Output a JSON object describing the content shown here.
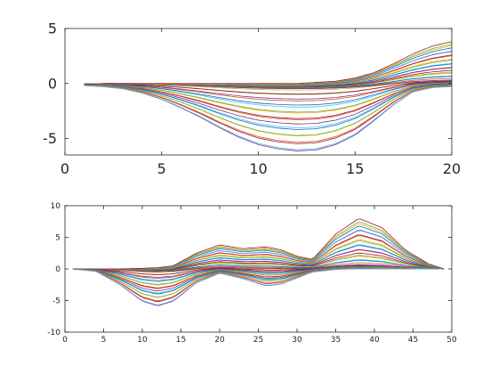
{
  "figure": {
    "background": "#ffffff",
    "axis_color": "#262626"
  },
  "chart_data": [
    {
      "type": "line",
      "title": "",
      "xlabel": "",
      "ylabel": "",
      "xlim": [
        0,
        20
      ],
      "ylim": [
        -6.5,
        5
      ],
      "xticks": [
        0,
        5,
        10,
        15,
        20
      ],
      "yticks": [
        -5,
        0,
        5
      ],
      "grid": false,
      "box": true,
      "line_count": 42,
      "x_range_of_lines": [
        1,
        20
      ],
      "envelope": {
        "x": [
          1,
          2,
          3,
          4,
          5,
          6,
          7,
          8,
          9,
          10,
          11,
          12,
          13,
          14,
          15,
          16,
          17,
          18,
          19,
          20
        ],
        "min": [
          -0.2,
          -0.3,
          -0.5,
          -0.9,
          -1.5,
          -2.3,
          -3.2,
          -4.2,
          -5.1,
          -5.8,
          -6.2,
          -6.4,
          -6.3,
          -5.8,
          -4.9,
          -3.5,
          -2.0,
          -0.8,
          -0.4,
          -0.3
        ],
        "max": [
          -0.1,
          0.0,
          0.0,
          0.0,
          0.0,
          0.0,
          0.0,
          0.0,
          0.0,
          0.0,
          0.0,
          0.0,
          0.1,
          0.2,
          0.5,
          1.0,
          1.8,
          2.7,
          3.4,
          3.8
        ]
      },
      "series_colors": [
        "#0072bd",
        "#d95319",
        "#edb120",
        "#7e2f8e",
        "#77ac30",
        "#4dbeee",
        "#a2142f"
      ]
    },
    {
      "type": "line",
      "title": "",
      "xlabel": "",
      "ylabel": "",
      "xlim": [
        0,
        50
      ],
      "ylim": [
        -10,
        10
      ],
      "xticks": [
        0,
        5,
        10,
        15,
        20,
        25,
        30,
        35,
        40,
        45,
        50
      ],
      "yticks": [
        -10,
        -5,
        0,
        5,
        10
      ],
      "grid": false,
      "box": true,
      "line_count": 42,
      "x_range_of_lines": [
        1,
        49
      ],
      "envelope": {
        "x": [
          1,
          4,
          7,
          10,
          12,
          14,
          17,
          20,
          23,
          26,
          28,
          30,
          32,
          35,
          38,
          41,
          44,
          47,
          49
        ],
        "min": [
          0,
          -0.4,
          -2.5,
          -5.3,
          -6.1,
          -5.3,
          -2.3,
          -0.7,
          -1.6,
          -2.8,
          -2.5,
          -1.5,
          -0.5,
          -0.1,
          0,
          0,
          0,
          0,
          0
        ],
        "max": [
          0,
          0,
          0,
          0.1,
          0.2,
          0.5,
          2.5,
          3.8,
          3.2,
          3.5,
          3.0,
          2.0,
          1.5,
          5.5,
          8.0,
          6.5,
          3.0,
          0.8,
          0
        ]
      },
      "series_colors": [
        "#0072bd",
        "#d95319",
        "#edb120",
        "#7e2f8e",
        "#77ac30",
        "#4dbeee",
        "#a2142f"
      ]
    }
  ]
}
